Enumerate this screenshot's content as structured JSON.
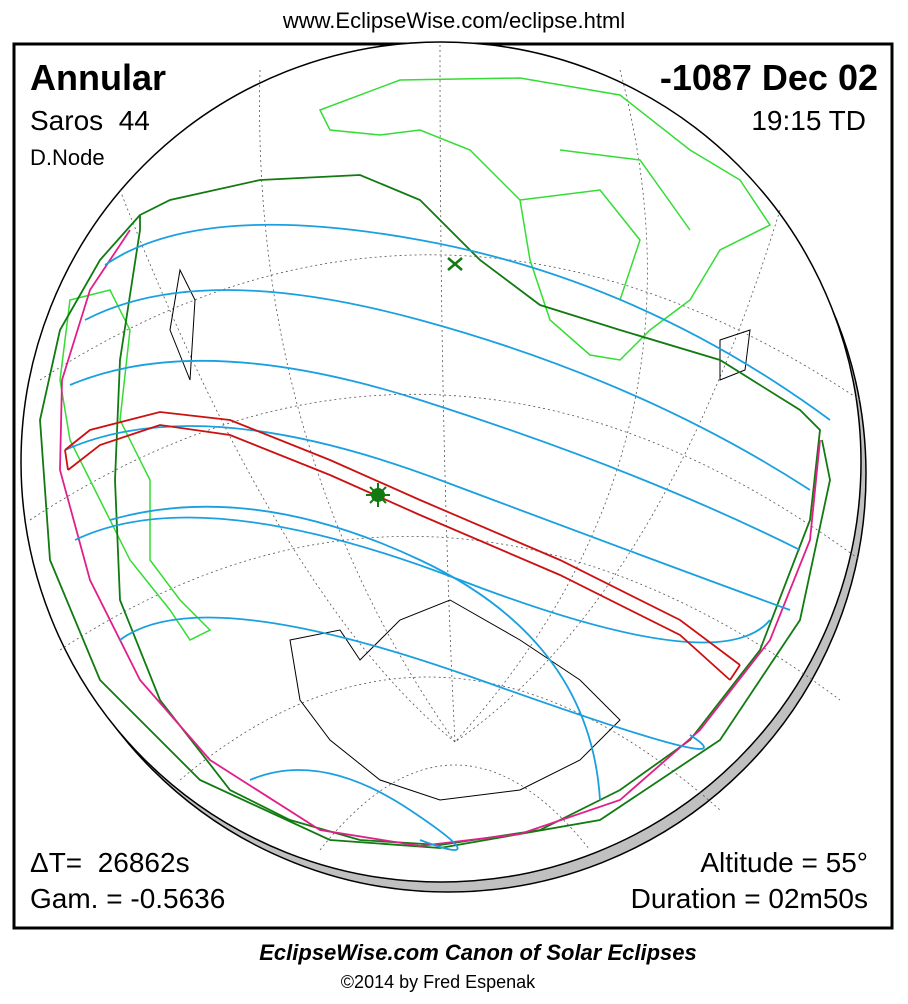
{
  "header": {
    "url": "www.EclipseWise.com/eclipse.html"
  },
  "map": {
    "eclipse_type": "Annular",
    "saros": "Saros  44",
    "node": "D.Node",
    "date": "-1087 Dec 02",
    "time": "19:15 TD",
    "delta_t": "ΔT=  26862s",
    "gamma": "Gam. = -0.5636",
    "altitude": "Altitude = 55°",
    "duration": "Duration = 02m50s"
  },
  "footer": {
    "title": "EclipseWise.com Canon of Solar Eclipses",
    "credit": "©2014 by Fred Espenak"
  }
}
